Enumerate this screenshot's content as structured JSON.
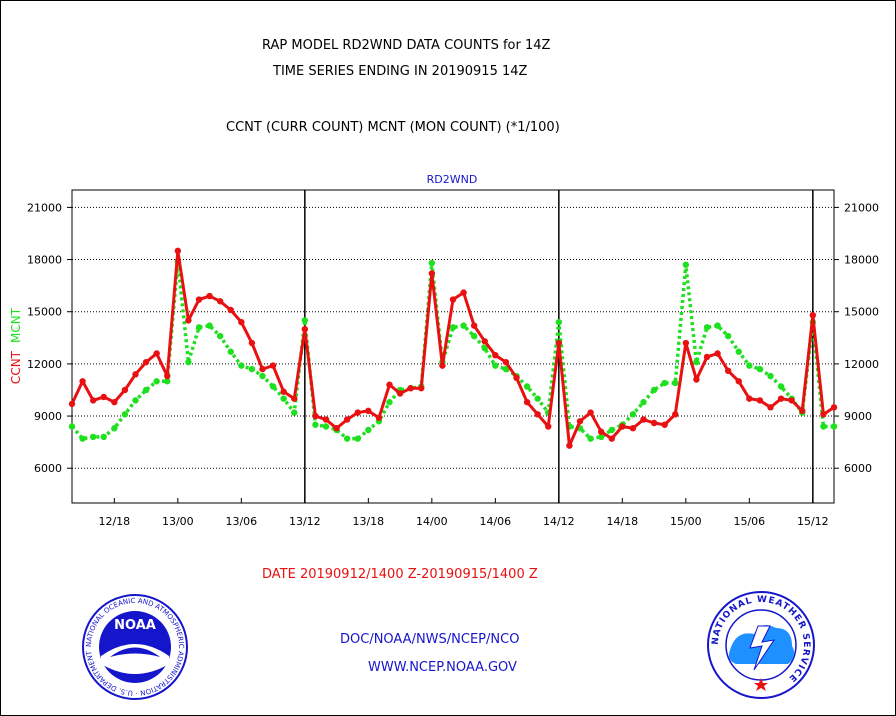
{
  "header": {
    "title_line1": "RAP MODEL RD2WND DATA COUNTS for 14Z",
    "title_line2": "TIME SERIES ENDING IN 20190915 14Z",
    "subtitle": "CCNT (CURR COUNT) MCNT (MON COUNT) (*1/100)"
  },
  "footer": {
    "date_range": "DATE 20190912/1400 Z-20190915/1400 Z",
    "org": "DOC/NOAA/NWS/NCEP/NCO",
    "url": "WWW.NCEP.NOAA.GOV"
  },
  "logos": {
    "noaa_text": "NOAA",
    "noaa_ring_text": "NATIONAL OCEANIC AND ATMOSPHERIC ADMINISTRATION · U.S. DEPARTMENT OF COMMERCE ·",
    "nws_ring_text": "NATIONAL WEATHER SERVICE"
  },
  "colors": {
    "ccnt": "#e81010",
    "mcnt": "#1ee01e",
    "panel_label": "#1515cc",
    "axis_left_label": "#e81010",
    "axis_left_label2": "#1ee01e"
  },
  "chart_data": {
    "type": "line",
    "panel_label": "RD2WND",
    "ylabel_left_parts": [
      "CCNT",
      "MCNT"
    ],
    "ylim": [
      4000,
      22000
    ],
    "yticks": [
      6000,
      9000,
      12000,
      15000,
      18000,
      21000
    ],
    "ytick_labels": [
      "6000",
      "9000",
      "12000",
      "15000",
      "18000",
      "21000"
    ],
    "xlim": [
      0,
      72
    ],
    "xticks": [
      4,
      10,
      16,
      22,
      28,
      34,
      40,
      46,
      52,
      58,
      64,
      70
    ],
    "xtick_labels": [
      "12/18",
      "13/00",
      "13/06",
      "13/12",
      "13/18",
      "14/00",
      "14/06",
      "14/12",
      "14/18",
      "15/00",
      "15/06",
      "15/12"
    ],
    "vertical_lines": [
      22,
      46,
      70
    ],
    "grid": "horizontal dotted",
    "x_unit": "hours after 20190912/1400 Z",
    "series": [
      {
        "name": "CCNT",
        "color": "#e81010",
        "values": [
          9700,
          11000,
          9900,
          10100,
          9800,
          10500,
          11400,
          12100,
          12600,
          11300,
          18500,
          14500,
          15700,
          15900,
          15600,
          15100,
          14400,
          13200,
          11700,
          11900,
          10400,
          10000,
          14000,
          9000,
          8800,
          8300,
          8800,
          9200,
          9300,
          8900,
          10800,
          10300,
          10600,
          10600,
          17200,
          11900,
          15700,
          16100,
          14200,
          13300,
          12500,
          12100,
          11200,
          9800,
          9100,
          8400,
          13200,
          7300,
          8700,
          9200,
          8100,
          7700,
          8400,
          8300,
          8800,
          8600,
          8500,
          9100,
          13200,
          11100,
          12400,
          12600,
          11600,
          11000,
          10000,
          9900,
          9500,
          10000,
          9900,
          9300,
          14800,
          9100,
          9500
        ]
      },
      {
        "name": "MCNT",
        "color": "#1ee01e",
        "values": [
          8400,
          7700,
          7800,
          7800,
          8300,
          9100,
          9900,
          10500,
          11000,
          11000,
          17900,
          12100,
          14100,
          14200,
          13600,
          12700,
          11900,
          11700,
          11300,
          10700,
          10000,
          9200,
          14500,
          8500,
          8400,
          8200,
          7700,
          7700,
          8200,
          8700,
          9800,
          10500,
          10600,
          10700,
          17800,
          12100,
          14100,
          14200,
          13600,
          12900,
          11900,
          11700,
          11300,
          10700,
          10000,
          9200,
          14400,
          8400,
          8300,
          7700,
          7800,
          8200,
          8500,
          9100,
          9800,
          10500,
          10900,
          10900,
          17700,
          12100,
          14100,
          14200,
          13600,
          12700,
          11900,
          11700,
          11300,
          10700,
          10000,
          9200,
          14400,
          8400,
          8400
        ]
      }
    ]
  }
}
